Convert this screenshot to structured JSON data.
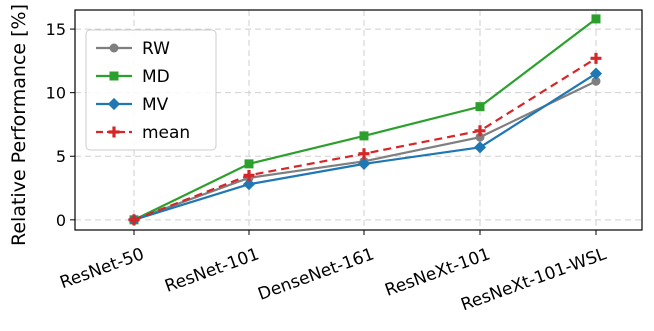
{
  "chart_data": {
    "type": "line",
    "title": "",
    "xlabel": "",
    "ylabel": "Relative Performance [%]",
    "categories": [
      "ResNet-50",
      "ResNet-101",
      "DenseNet-161",
      "ResNeXt-101",
      "ResNeXt-101-WSL"
    ],
    "y_ticks": [
      0,
      5,
      10,
      15
    ],
    "ylim": [
      -0.8,
      16.5
    ],
    "grid": true,
    "legend_position": "top-left",
    "series": [
      {
        "name": "RW",
        "values": [
          0.0,
          3.3,
          4.6,
          6.5,
          10.9
        ],
        "color": "#7f7f7f",
        "marker": "circle",
        "line_style": "solid"
      },
      {
        "name": "MD",
        "values": [
          0.0,
          4.4,
          6.6,
          8.9,
          15.8
        ],
        "color": "#2ca02c",
        "marker": "square",
        "line_style": "solid"
      },
      {
        "name": "MV",
        "values": [
          0.0,
          2.8,
          4.4,
          5.7,
          11.5
        ],
        "color": "#1f77b4",
        "marker": "diamond",
        "line_style": "solid"
      },
      {
        "name": "mean",
        "values": [
          0.0,
          3.5,
          5.2,
          7.0,
          12.7
        ],
        "color": "#d62728",
        "marker": "plus",
        "line_style": "dashed"
      }
    ]
  }
}
